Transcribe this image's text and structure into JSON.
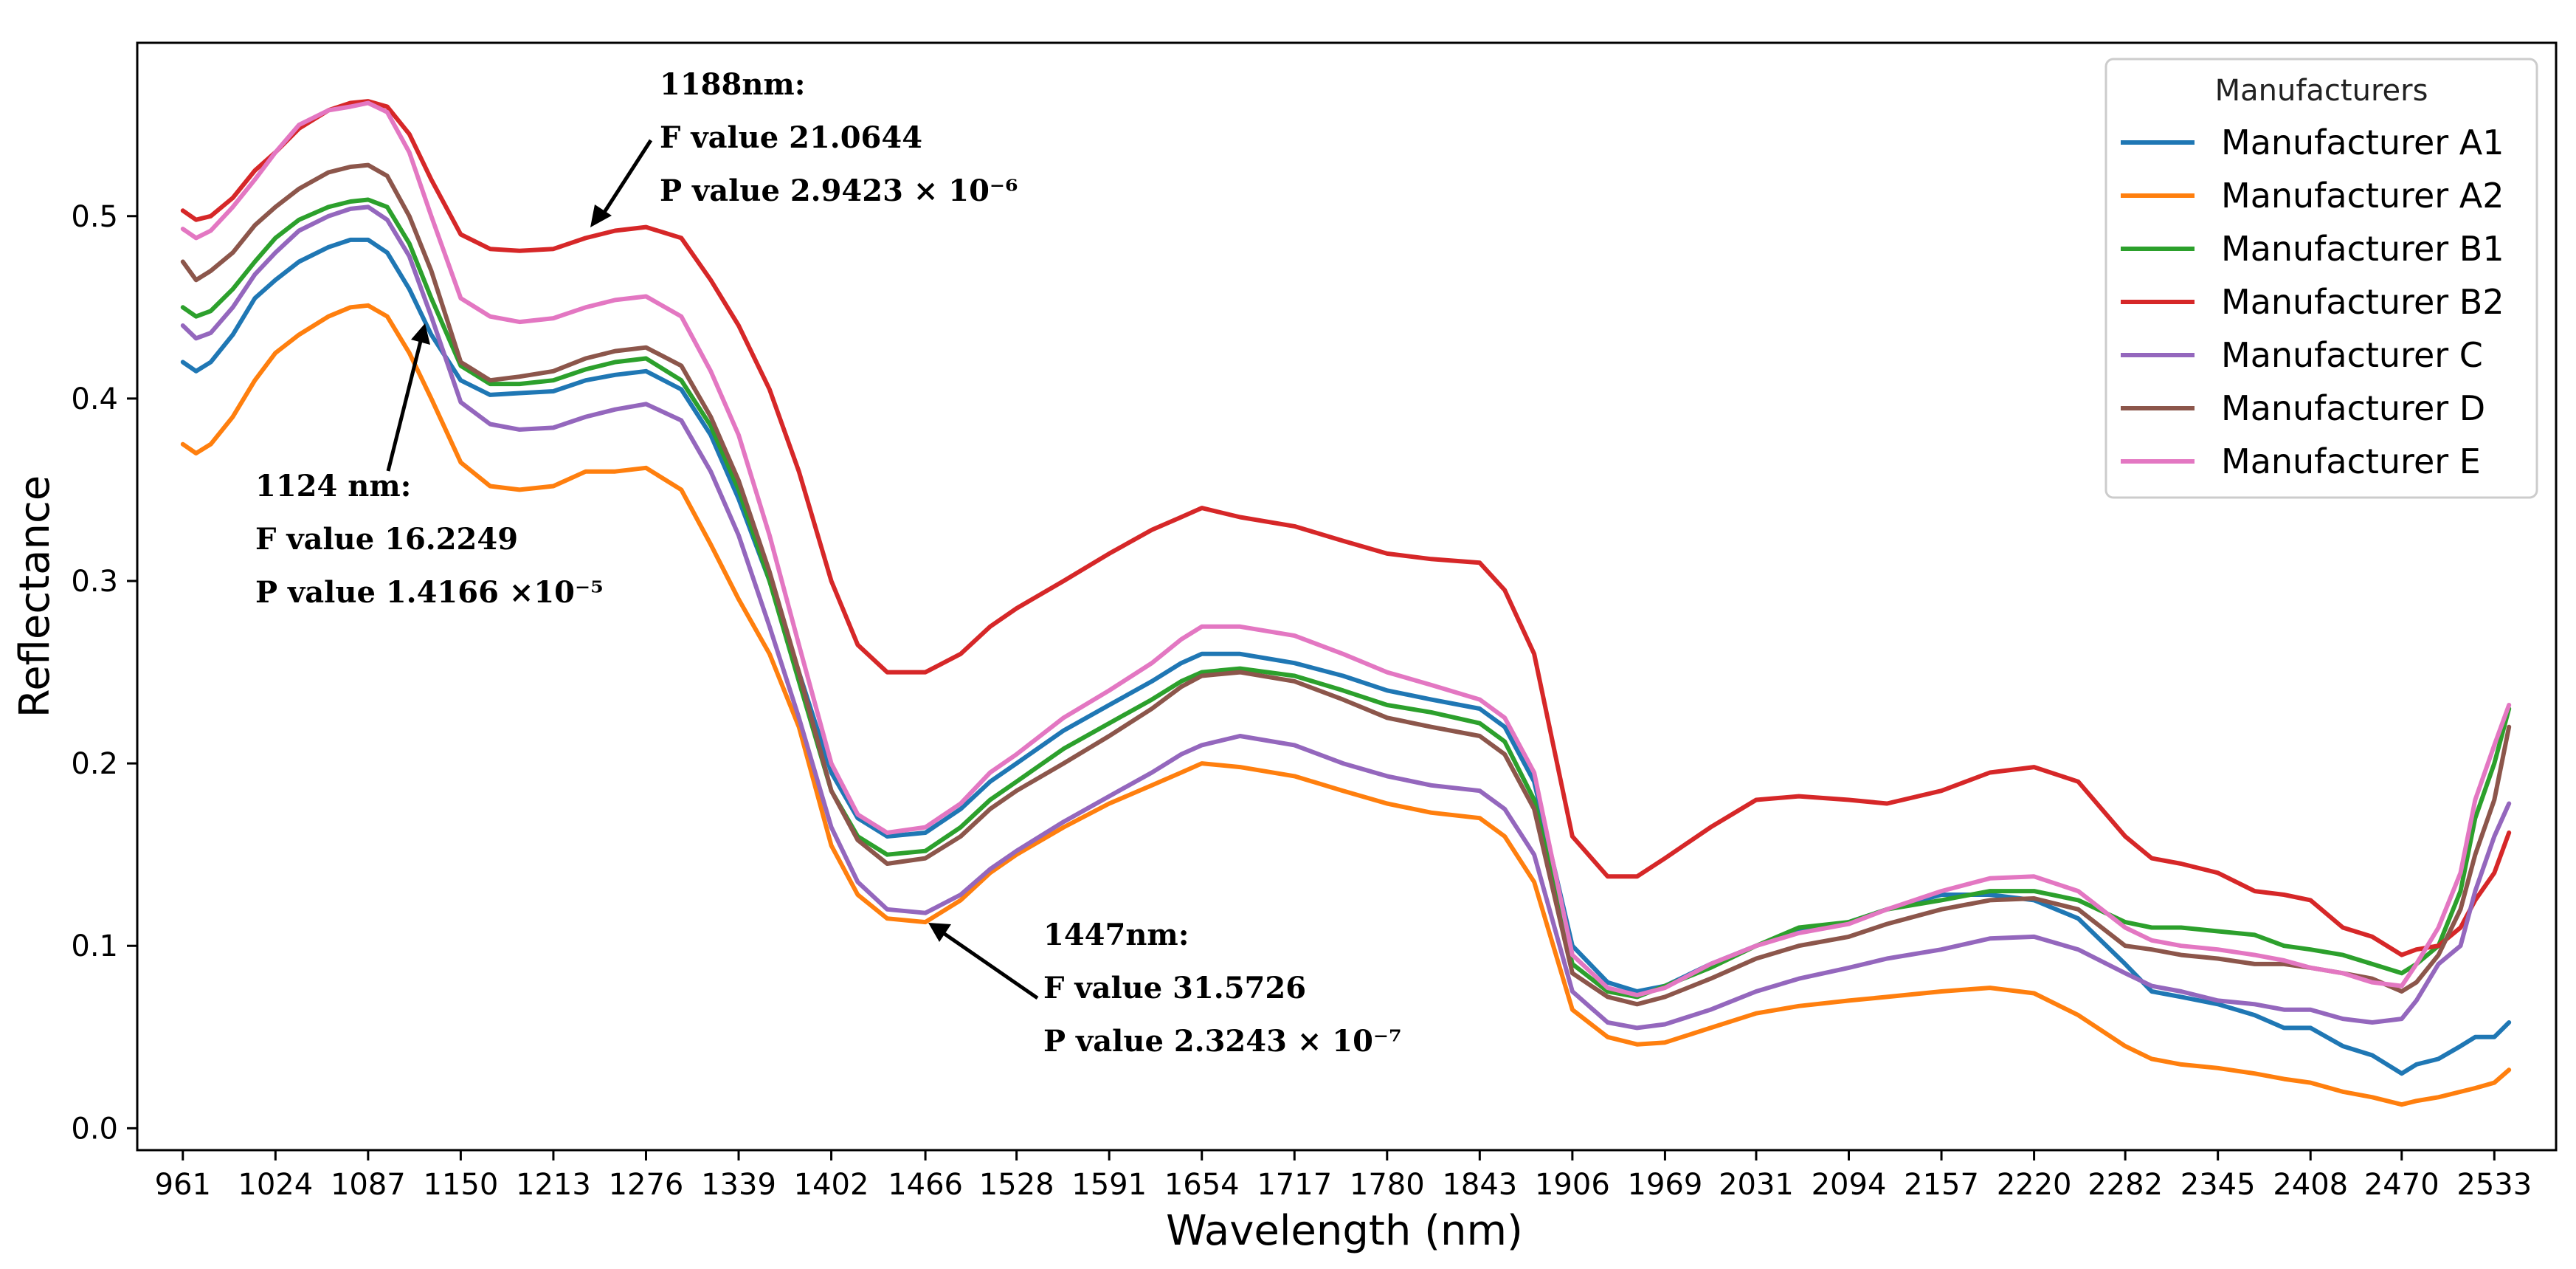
{
  "chart_data": {
    "type": "line",
    "title": "",
    "xlabel": "Wavelength (nm)",
    "ylabel": "Reflectance",
    "xlim": [
      930,
      2575
    ],
    "ylim": [
      -0.012,
      0.595
    ],
    "grid": false,
    "legend_placement": "top-right",
    "legend_title": "Manufacturers",
    "x_ticks": [
      961,
      1024,
      1087,
      1150,
      1213,
      1276,
      1339,
      1402,
      1466,
      1528,
      1591,
      1654,
      1717,
      1780,
      1843,
      1906,
      1969,
      2031,
      2094,
      2157,
      2220,
      2282,
      2345,
      2408,
      2470,
      2533
    ],
    "y_ticks": [
      0.0,
      0.1,
      0.2,
      0.3,
      0.4,
      0.5
    ],
    "y_tick_labels": [
      "0.0",
      "0.1",
      "0.2",
      "0.3",
      "0.4",
      "0.5"
    ],
    "x": [
      961,
      970,
      980,
      995,
      1010,
      1024,
      1040,
      1060,
      1075,
      1087,
      1100,
      1115,
      1130,
      1150,
      1170,
      1190,
      1213,
      1235,
      1255,
      1276,
      1300,
      1320,
      1339,
      1360,
      1380,
      1402,
      1420,
      1440,
      1466,
      1490,
      1510,
      1528,
      1560,
      1591,
      1620,
      1640,
      1654,
      1680,
      1717,
      1750,
      1780,
      1810,
      1843,
      1860,
      1880,
      1906,
      1930,
      1950,
      1969,
      2000,
      2031,
      2060,
      2094,
      2120,
      2157,
      2190,
      2220,
      2250,
      2282,
      2300,
      2320,
      2345,
      2370,
      2390,
      2408,
      2430,
      2450,
      2470,
      2480,
      2495,
      2510,
      2520,
      2533,
      2543
    ],
    "series": [
      {
        "name": "Manufacturer A1",
        "color": "#1f77b4",
        "values": [
          0.42,
          0.415,
          0.42,
          0.435,
          0.455,
          0.465,
          0.475,
          0.483,
          0.487,
          0.487,
          0.48,
          0.46,
          0.435,
          0.41,
          0.402,
          0.403,
          0.404,
          0.41,
          0.413,
          0.415,
          0.405,
          0.38,
          0.345,
          0.3,
          0.25,
          0.195,
          0.17,
          0.16,
          0.162,
          0.175,
          0.19,
          0.2,
          0.218,
          0.232,
          0.245,
          0.255,
          0.26,
          0.26,
          0.255,
          0.248,
          0.24,
          0.235,
          0.23,
          0.22,
          0.19,
          0.1,
          0.08,
          0.075,
          0.078,
          0.09,
          0.1,
          0.108,
          0.113,
          0.12,
          0.128,
          0.128,
          0.125,
          0.115,
          0.09,
          0.075,
          0.072,
          0.068,
          0.062,
          0.055,
          0.055,
          0.045,
          0.04,
          0.03,
          0.035,
          0.038,
          0.045,
          0.05,
          0.05,
          0.058
        ]
      },
      {
        "name": "Manufacturer A2",
        "color": "#ff7f0e",
        "values": [
          0.375,
          0.37,
          0.375,
          0.39,
          0.41,
          0.425,
          0.435,
          0.445,
          0.45,
          0.451,
          0.445,
          0.425,
          0.4,
          0.365,
          0.352,
          0.35,
          0.352,
          0.36,
          0.36,
          0.362,
          0.35,
          0.32,
          0.29,
          0.26,
          0.22,
          0.155,
          0.128,
          0.115,
          0.113,
          0.125,
          0.14,
          0.15,
          0.165,
          0.178,
          0.188,
          0.195,
          0.2,
          0.198,
          0.193,
          0.185,
          0.178,
          0.173,
          0.17,
          0.16,
          0.135,
          0.065,
          0.05,
          0.046,
          0.047,
          0.055,
          0.063,
          0.067,
          0.07,
          0.072,
          0.075,
          0.077,
          0.074,
          0.062,
          0.045,
          0.038,
          0.035,
          0.033,
          0.03,
          0.027,
          0.025,
          0.02,
          0.017,
          0.013,
          0.015,
          0.017,
          0.02,
          0.022,
          0.025,
          0.032
        ]
      },
      {
        "name": "Manufacturer B1",
        "color": "#2ca02c",
        "values": [
          0.45,
          0.445,
          0.448,
          0.46,
          0.475,
          0.488,
          0.498,
          0.505,
          0.508,
          0.509,
          0.505,
          0.485,
          0.455,
          0.418,
          0.408,
          0.408,
          0.41,
          0.416,
          0.42,
          0.422,
          0.41,
          0.385,
          0.35,
          0.3,
          0.245,
          0.185,
          0.16,
          0.15,
          0.152,
          0.165,
          0.18,
          0.19,
          0.208,
          0.222,
          0.235,
          0.245,
          0.25,
          0.252,
          0.248,
          0.24,
          0.232,
          0.228,
          0.222,
          0.212,
          0.18,
          0.09,
          0.075,
          0.072,
          0.078,
          0.088,
          0.1,
          0.11,
          0.113,
          0.12,
          0.125,
          0.13,
          0.13,
          0.125,
          0.113,
          0.11,
          0.11,
          0.108,
          0.106,
          0.1,
          0.098,
          0.095,
          0.09,
          0.085,
          0.09,
          0.1,
          0.13,
          0.17,
          0.2,
          0.23
        ]
      },
      {
        "name": "Manufacturer B2",
        "color": "#d62728",
        "values": [
          0.503,
          0.498,
          0.5,
          0.51,
          0.525,
          0.535,
          0.548,
          0.558,
          0.562,
          0.563,
          0.56,
          0.545,
          0.52,
          0.49,
          0.482,
          0.481,
          0.482,
          0.488,
          0.492,
          0.494,
          0.488,
          0.465,
          0.44,
          0.405,
          0.36,
          0.3,
          0.265,
          0.25,
          0.25,
          0.26,
          0.275,
          0.285,
          0.3,
          0.315,
          0.328,
          0.335,
          0.34,
          0.335,
          0.33,
          0.322,
          0.315,
          0.312,
          0.31,
          0.295,
          0.26,
          0.16,
          0.138,
          0.138,
          0.148,
          0.165,
          0.18,
          0.182,
          0.18,
          0.178,
          0.185,
          0.195,
          0.198,
          0.19,
          0.16,
          0.148,
          0.145,
          0.14,
          0.13,
          0.128,
          0.125,
          0.11,
          0.105,
          0.095,
          0.098,
          0.1,
          0.11,
          0.125,
          0.14,
          0.162
        ]
      },
      {
        "name": "Manufacturer C",
        "color": "#9467bd",
        "values": [
          0.44,
          0.433,
          0.436,
          0.45,
          0.468,
          0.48,
          0.492,
          0.5,
          0.504,
          0.505,
          0.498,
          0.478,
          0.445,
          0.398,
          0.386,
          0.383,
          0.384,
          0.39,
          0.394,
          0.397,
          0.388,
          0.36,
          0.325,
          0.275,
          0.225,
          0.165,
          0.135,
          0.12,
          0.118,
          0.128,
          0.142,
          0.152,
          0.168,
          0.182,
          0.195,
          0.205,
          0.21,
          0.215,
          0.21,
          0.2,
          0.193,
          0.188,
          0.185,
          0.175,
          0.15,
          0.075,
          0.058,
          0.055,
          0.057,
          0.065,
          0.075,
          0.082,
          0.088,
          0.093,
          0.098,
          0.104,
          0.105,
          0.098,
          0.085,
          0.078,
          0.075,
          0.07,
          0.068,
          0.065,
          0.065,
          0.06,
          0.058,
          0.06,
          0.07,
          0.09,
          0.1,
          0.13,
          0.16,
          0.178
        ]
      },
      {
        "name": "Manufacturer D",
        "color": "#8c564b",
        "values": [
          0.475,
          0.465,
          0.47,
          0.48,
          0.495,
          0.505,
          0.515,
          0.524,
          0.527,
          0.528,
          0.522,
          0.5,
          0.47,
          0.42,
          0.41,
          0.412,
          0.415,
          0.422,
          0.426,
          0.428,
          0.418,
          0.39,
          0.355,
          0.305,
          0.25,
          0.185,
          0.158,
          0.145,
          0.148,
          0.16,
          0.175,
          0.185,
          0.2,
          0.215,
          0.23,
          0.242,
          0.248,
          0.25,
          0.245,
          0.235,
          0.225,
          0.22,
          0.215,
          0.205,
          0.175,
          0.085,
          0.072,
          0.068,
          0.072,
          0.082,
          0.093,
          0.1,
          0.105,
          0.112,
          0.12,
          0.125,
          0.126,
          0.12,
          0.1,
          0.098,
          0.095,
          0.093,
          0.09,
          0.09,
          0.088,
          0.085,
          0.082,
          0.075,
          0.08,
          0.095,
          0.12,
          0.15,
          0.18,
          0.22
        ]
      },
      {
        "name": "Manufacturer E",
        "color": "#e377c2",
        "values": [
          0.493,
          0.488,
          0.492,
          0.505,
          0.52,
          0.535,
          0.55,
          0.558,
          0.56,
          0.562,
          0.557,
          0.535,
          0.5,
          0.455,
          0.445,
          0.442,
          0.444,
          0.45,
          0.454,
          0.456,
          0.445,
          0.415,
          0.38,
          0.325,
          0.265,
          0.2,
          0.172,
          0.162,
          0.165,
          0.178,
          0.195,
          0.205,
          0.225,
          0.24,
          0.255,
          0.268,
          0.275,
          0.275,
          0.27,
          0.26,
          0.25,
          0.243,
          0.235,
          0.225,
          0.195,
          0.095,
          0.077,
          0.073,
          0.077,
          0.09,
          0.1,
          0.107,
          0.112,
          0.12,
          0.13,
          0.137,
          0.138,
          0.13,
          0.11,
          0.103,
          0.1,
          0.098,
          0.095,
          0.092,
          0.088,
          0.085,
          0.08,
          0.078,
          0.09,
          0.11,
          0.14,
          0.18,
          0.21,
          0.232
        ]
      }
    ],
    "annotations": [
      {
        "lines": [
          "1188nm:",
          "F value 21.0644",
          "P value 2.9423 × 10⁻⁶"
        ],
        "x": 1188,
        "y": 0.49
      },
      {
        "lines": [
          "1124 nm:",
          "F value 16.2249",
          "P value 1.4166 ×10⁻⁵"
        ],
        "x": 1124,
        "y": 0.438
      },
      {
        "lines": [
          "1447nm:",
          "F value  31.5726",
          "P value  2.3243 × 10⁻⁷"
        ],
        "x": 1447,
        "y": 0.107
      }
    ]
  }
}
